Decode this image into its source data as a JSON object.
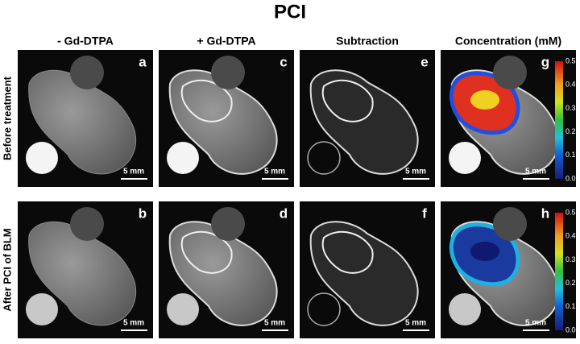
{
  "title": "PCI",
  "columns": [
    "- Gd-DTPA",
    "+ Gd-DTPA",
    "Subtraction",
    "Concentration (mM)"
  ],
  "rows": [
    "Before treatment",
    "After PCI of BLM"
  ],
  "panels": [
    [
      "a",
      "c",
      "e",
      "g"
    ],
    [
      "b",
      "d",
      "f",
      "h"
    ]
  ],
  "scale_bar": "5 mm",
  "colorbar_ticks": [
    "0.5",
    "0.4",
    "0.3",
    "0.2",
    "0.1",
    "0.0"
  ]
}
